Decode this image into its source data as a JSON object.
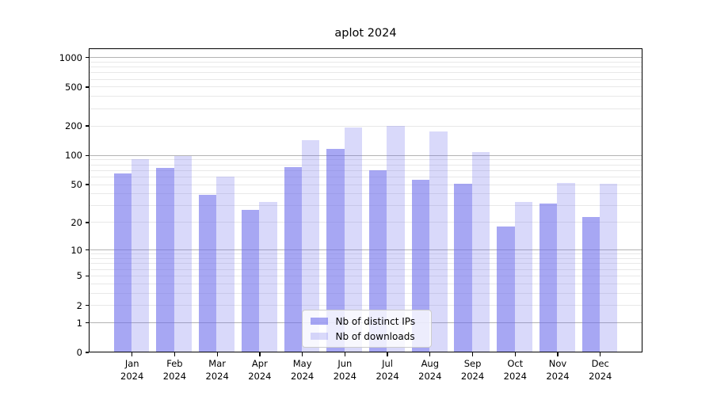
{
  "chart_data": {
    "type": "bar",
    "title": "aplot 2024",
    "categories": [
      "Jan 2024",
      "Feb 2024",
      "Mar 2024",
      "Apr 2024",
      "May 2024",
      "Jun 2024",
      "Jul 2024",
      "Aug 2024",
      "Sep 2024",
      "Oct 2024",
      "Nov 2024",
      "Dec 2024"
    ],
    "series": [
      {
        "name": "Nb of distinct IPs",
        "color": "rgba(108,108,235,0.6)",
        "values": [
          65,
          75,
          39,
          27,
          76,
          116,
          70,
          56,
          51,
          18,
          32,
          23
        ]
      },
      {
        "name": "Nb of downloads",
        "color": "rgba(108,108,235,0.26)",
        "values": [
          91,
          98,
          61,
          33,
          144,
          193,
          200,
          177,
          108,
          33,
          52,
          51
        ]
      }
    ],
    "y_axis": {
      "scale": "log10(1+v)",
      "ticks": [
        0,
        1,
        2,
        5,
        10,
        20,
        50,
        100,
        200,
        500,
        1000
      ],
      "major_gridlines": [
        1,
        10,
        100,
        1000
      ],
      "minor_gridlines": [
        2,
        3,
        4,
        5,
        6,
        7,
        8,
        9,
        20,
        30,
        40,
        50,
        60,
        70,
        80,
        90,
        200,
        300,
        400,
        500,
        600,
        700,
        800,
        900
      ],
      "ylim": [
        0,
        1250
      ]
    },
    "x_axis": {
      "tick_line2": "2024"
    },
    "legend": {
      "position": "lower center"
    },
    "grid": true,
    "colors": {
      "axis": "#000000",
      "major_grid": "#b3b3b3",
      "minor_grid": "#e8e8e8",
      "legend_border": "#cccccc",
      "legend_bg": "rgba(255,255,255,0.8)"
    }
  }
}
